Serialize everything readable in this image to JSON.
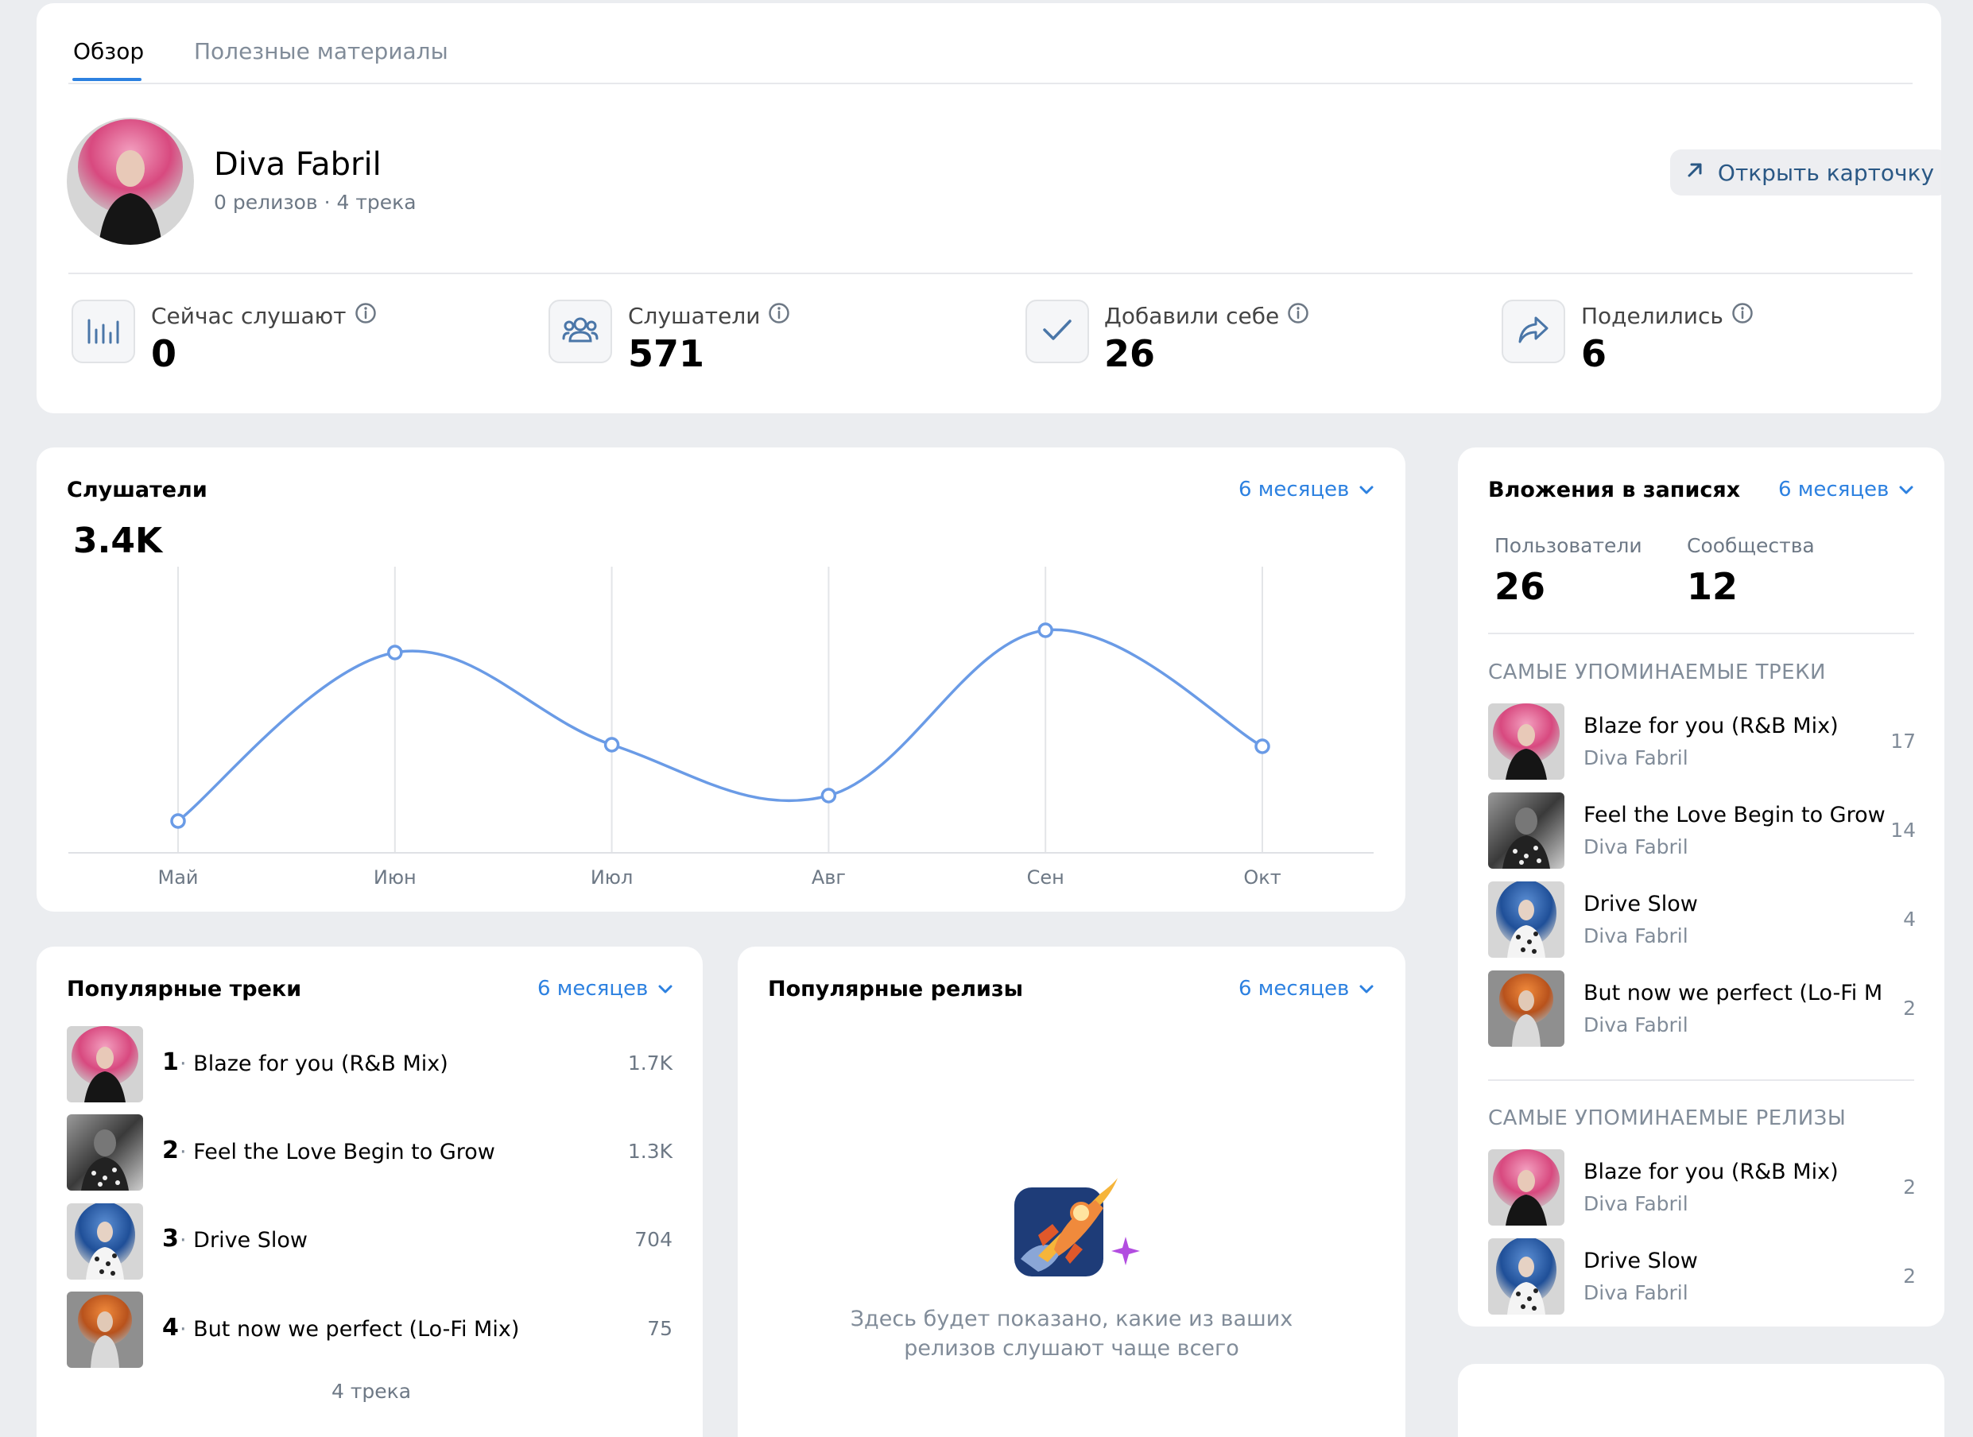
{
  "tabs": [
    {
      "label": "Обзор",
      "active": true
    },
    {
      "label": "Полезные материалы",
      "active": false
    }
  ],
  "artist": {
    "name": "Diva Fabril",
    "subtitle": "0 релизов · 4 трека",
    "open_card_label": "Открыть карточку"
  },
  "stats": [
    {
      "icon": "bars-chart-icon",
      "label": "Сейчас слушают",
      "value": "0"
    },
    {
      "icon": "users-icon",
      "label": "Слушатели",
      "value": "571"
    },
    {
      "icon": "check-icon",
      "label": "Добавили себе",
      "value": "26"
    },
    {
      "icon": "share-icon",
      "label": "Поделились",
      "value": "6"
    }
  ],
  "listeners_chart": {
    "title": "Слушатели",
    "period": "6 месяцев",
    "total": "3.4K"
  },
  "chart_data": {
    "type": "line",
    "categories": [
      "Май",
      "Июн",
      "Июл",
      "Авг",
      "Сен",
      "Окт"
    ],
    "values": [
      100,
      630,
      340,
      180,
      700,
      335
    ],
    "title": "Слушатели",
    "xlabel": "",
    "ylabel": "",
    "color": "#6a9be6",
    "grid": "vertical",
    "ylim": [
      0,
      800
    ]
  },
  "popular_tracks": {
    "title": "Популярные треки",
    "period": "6 месяцев",
    "items": [
      {
        "rank": "1",
        "title": "Blaze for you (R&B Mix)",
        "count": "1.7K",
        "cover": "pink"
      },
      {
        "rank": "2",
        "title": "Feel the Love Begin to Grow",
        "count": "1.3K",
        "cover": "bw"
      },
      {
        "rank": "3",
        "title": "Drive Slow",
        "count": "704",
        "cover": "blue"
      },
      {
        "rank": "4",
        "title": "But now we perfect (Lo-Fi Mix)",
        "count": "75",
        "cover": "orange"
      }
    ],
    "footer": "4 трека"
  },
  "popular_releases": {
    "title": "Популярные релизы",
    "period": "6 месяцев",
    "empty_text": "Здесь будет показано, какие из ваших релизов слушают чаще всего"
  },
  "attachments": {
    "title": "Вложения в записях",
    "period": "6 месяцев",
    "users_label": "Пользователи",
    "users_value": "26",
    "communities_label": "Сообщества",
    "communities_value": "12",
    "tracks_heading": "САМЫЕ УПОМИНАЕМЫЕ ТРЕКИ",
    "tracks": [
      {
        "title": "Blaze for you (R&B Mix)",
        "artist": "Diva Fabril",
        "count": "17",
        "cover": "pink"
      },
      {
        "title": "Feel the Love Begin to Grow",
        "artist": "Diva Fabril",
        "count": "14",
        "cover": "bw"
      },
      {
        "title": "Drive Slow",
        "artist": "Diva Fabril",
        "count": "4",
        "cover": "blue"
      },
      {
        "title": "But now we perfect (Lo-Fi Mix)",
        "artist": "Diva Fabril",
        "count": "2",
        "cover": "orange"
      }
    ],
    "releases_heading": "САМЫЕ УПОМИНАЕМЫЕ РЕЛИЗЫ",
    "releases": [
      {
        "title": "Blaze for you (R&B Mix)",
        "artist": "Diva Fabril",
        "count": "2",
        "cover": "pink"
      },
      {
        "title": "Drive Slow",
        "artist": "Diva Fabril",
        "count": "2",
        "cover": "blue"
      }
    ]
  },
  "colors": {
    "accent": "#2d81e0",
    "link": "#2a5885",
    "background": "#ebedf0",
    "line": "#6a9be6"
  }
}
